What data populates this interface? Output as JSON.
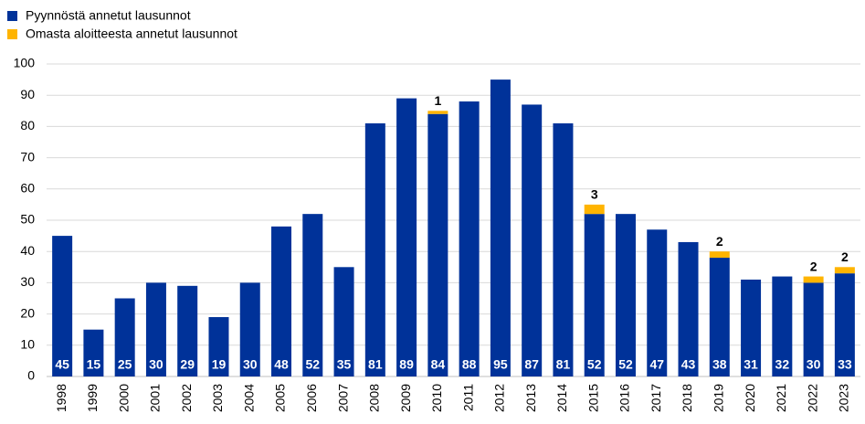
{
  "chart_data": {
    "type": "stacked-bar",
    "categories": [
      "1998",
      "1999",
      "2000",
      "2001",
      "2002",
      "2003",
      "2004",
      "2005",
      "2006",
      "2007",
      "2008",
      "2009",
      "2010",
      "2011",
      "2012",
      "2013",
      "2014",
      "2015",
      "2016",
      "2017",
      "2018",
      "2019",
      "2020",
      "2021",
      "2022",
      "2023"
    ],
    "series": [
      {
        "name": "Pyynnöstä annetut lausunnot",
        "color": "#003299",
        "values": [
          45,
          15,
          25,
          30,
          29,
          19,
          30,
          48,
          52,
          35,
          81,
          89,
          84,
          88,
          95,
          87,
          81,
          52,
          52,
          47,
          43,
          38,
          31,
          32,
          30,
          33
        ]
      },
      {
        "name": "Omasta aloitteesta annetut lausunnot",
        "color": "#ffb400",
        "values": [
          null,
          null,
          null,
          null,
          null,
          null,
          null,
          null,
          null,
          null,
          null,
          null,
          1,
          null,
          null,
          null,
          null,
          3,
          null,
          null,
          null,
          2,
          null,
          null,
          2,
          2
        ]
      }
    ],
    "ylim": [
      0,
      100
    ],
    "yticks": [
      0,
      10,
      20,
      30,
      40,
      50,
      60,
      70,
      80,
      90,
      100
    ],
    "grid": true,
    "legend": "top-left"
  }
}
